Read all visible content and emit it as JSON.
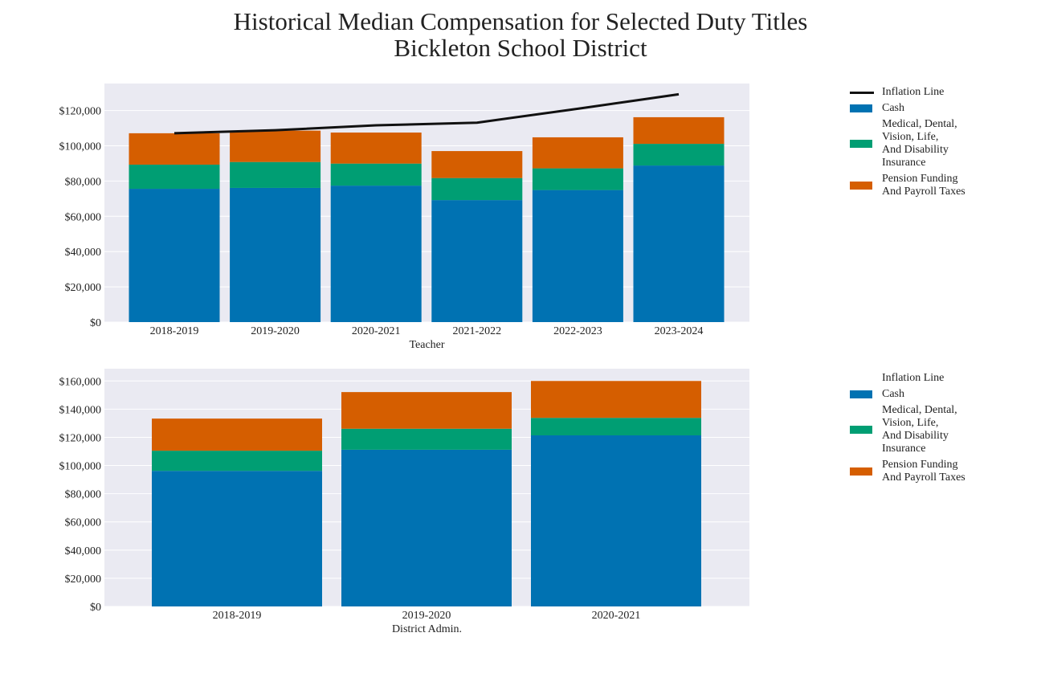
{
  "title": {
    "line1": "Historical Median Compensation for Selected Duty Titles",
    "line2": "Bickleton School District"
  },
  "colors": {
    "cash": "#0072b2",
    "insurance": "#009e73",
    "pension": "#d55e00",
    "inflation": "#111111",
    "plot_bg": "#eaeaf2",
    "grid": "#ffffff"
  },
  "chart_data": [
    {
      "type": "bar",
      "stacked": true,
      "xlabel": "Teacher",
      "ylabel": "",
      "categories": [
        "2018-2019",
        "2019-2020",
        "2020-2021",
        "2021-2022",
        "2022-2023",
        "2023-2024"
      ],
      "ylim": [
        0,
        135300
      ],
      "yticks": [
        0,
        20000,
        40000,
        60000,
        80000,
        100000,
        120000
      ],
      "ytick_labels": [
        "$0",
        "$20,000",
        "$40,000",
        "$60,000",
        "$80,000",
        "$100,000",
        "$120,000"
      ],
      "grid": true,
      "legend_position": "right",
      "series": [
        {
          "name": "Cash",
          "color": "#0072b2",
          "values": [
            75600,
            76100,
            77400,
            69200,
            74900,
            88800
          ]
        },
        {
          "name": "Medical, Dental, Vision, Life, And Disability Insurance",
          "color": "#009e73",
          "values": [
            13700,
            14700,
            12500,
            12500,
            12300,
            12300
          ]
        },
        {
          "name": "Pension Funding And Payroll Taxes",
          "color": "#d55e00",
          "values": [
            17800,
            17800,
            17600,
            15300,
            17600,
            15100
          ]
        }
      ],
      "line": {
        "name": "Inflation Line",
        "color": "#111111",
        "values": [
          107100,
          108800,
          111600,
          113100,
          121000,
          129200
        ]
      },
      "legend": [
        "Inflation Line",
        "Cash",
        "Medical, Dental,\nVision, Life,\nAnd Disability\nInsurance",
        "Pension Funding\nAnd Payroll Taxes"
      ]
    },
    {
      "type": "bar",
      "stacked": true,
      "xlabel": "District Admin.",
      "ylabel": "",
      "categories": [
        "2018-2019",
        "2019-2020",
        "2020-2021"
      ],
      "ylim": [
        0,
        168700
      ],
      "yticks": [
        0,
        20000,
        40000,
        60000,
        80000,
        100000,
        120000,
        140000,
        160000
      ],
      "ytick_labels": [
        "$0",
        "$20,000",
        "$40,000",
        "$60,000",
        "$80,000",
        "$100,000",
        "$120,000",
        "$140,000",
        "$160,000"
      ],
      "grid": true,
      "legend_position": "right",
      "series": [
        {
          "name": "Cash",
          "color": "#0072b2",
          "values": [
            96200,
            111200,
            121400
          ]
        },
        {
          "name": "Medical, Dental, Vision, Life, And Disability Insurance",
          "color": "#009e73",
          "values": [
            14300,
            14900,
            12400
          ]
        },
        {
          "name": "Pension Funding And Payroll Taxes",
          "color": "#d55e00",
          "values": [
            22800,
            26000,
            26200
          ]
        }
      ],
      "line": {
        "name": "Inflation Line",
        "color": "#111111",
        "values": []
      },
      "legend": [
        "Inflation Line",
        "Cash",
        "Medical, Dental,\nVision, Life,\nAnd Disability\nInsurance",
        "Pension Funding\nAnd Payroll Taxes"
      ]
    }
  ]
}
